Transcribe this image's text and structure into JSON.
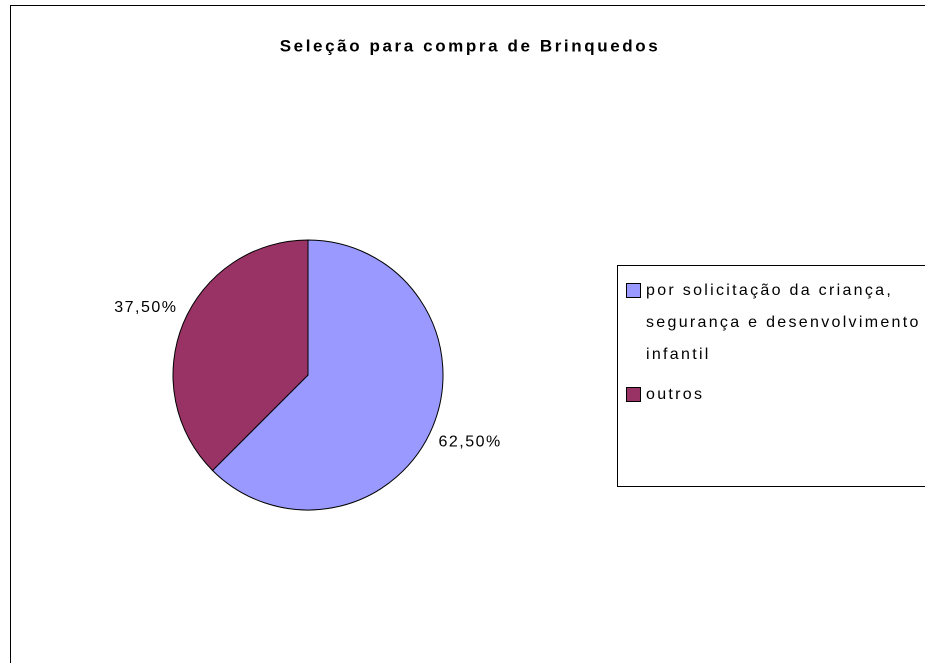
{
  "chart_data": {
    "type": "pie",
    "title": "Seleção para compra de Brinquedos",
    "categories": [
      "por solicitação da criança, segurança e desenvolvimento infantil",
      "outros"
    ],
    "values": [
      62.5,
      37.5
    ],
    "value_labels": [
      "62,50%",
      "37,50%"
    ],
    "colors": [
      "#9999ff",
      "#993366"
    ],
    "legend": "right"
  }
}
